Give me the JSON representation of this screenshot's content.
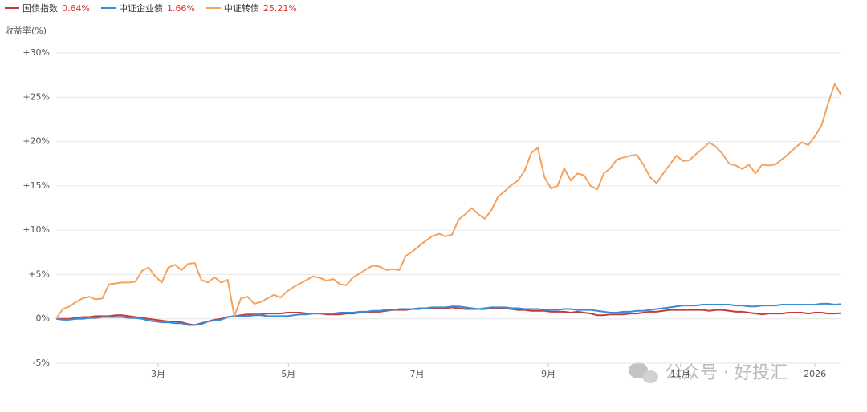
{
  "chart_data": {
    "type": "line",
    "y_axis_title": "收益率(%)",
    "watermark": "公众号 · 好投汇",
    "xlim": [
      0,
      119
    ],
    "xticks": [
      {
        "value": 15.45,
        "label": "3月"
      },
      {
        "value": 35.2,
        "label": "5月"
      },
      {
        "value": 54.7,
        "label": "7月"
      },
      {
        "value": 74.6,
        "label": "9月"
      },
      {
        "value": 94.6,
        "label": "11月"
      },
      {
        "value": 115,
        "label": "2026"
      }
    ],
    "ylim": [
      -5,
      30
    ],
    "yticks": [
      {
        "value": -5,
        "label": "-5%"
      },
      {
        "value": 0,
        "label": "0%"
      },
      {
        "value": 5,
        "label": "+5%"
      },
      {
        "value": 10,
        "label": "+10%"
      },
      {
        "value": 15,
        "label": "+15%"
      },
      {
        "value": 20,
        "label": "+20%"
      },
      {
        "value": 25,
        "label": "+25%"
      },
      {
        "value": 30,
        "label": "+30%"
      }
    ],
    "grid": true,
    "legend_value_color": "#e02f2f",
    "series": [
      {
        "name": "国债指数",
        "legend_value": "0.64%",
        "color": "#c8393a",
        "values": [
          0,
          0,
          0,
          0.1,
          0.2,
          0.2,
          0.3,
          0.3,
          0.3,
          0.4,
          0.4,
          0.3,
          0.2,
          0.1,
          0,
          -0.1,
          -0.2,
          -0.3,
          -0.3,
          -0.4,
          -0.6,
          -0.7,
          -0.5,
          -0.3,
          -0.1,
          0,
          0.2,
          0.3,
          0.4,
          0.5,
          0.5,
          0.5,
          0.6,
          0.6,
          0.6,
          0.7,
          0.7,
          0.7,
          0.6,
          0.6,
          0.6,
          0.5,
          0.5,
          0.5,
          0.6,
          0.6,
          0.7,
          0.7,
          0.8,
          0.8,
          0.9,
          1.0,
          1.0,
          1.0,
          1.1,
          1.1,
          1.2,
          1.2,
          1.2,
          1.2,
          1.3,
          1.2,
          1.1,
          1.1,
          1.1,
          1.1,
          1.2,
          1.2,
          1.2,
          1.1,
          1.0,
          1.0,
          0.9,
          0.9,
          0.9,
          0.8,
          0.8,
          0.8,
          0.7,
          0.8,
          0.7,
          0.6,
          0.4,
          0.4,
          0.5,
          0.5,
          0.5,
          0.6,
          0.6,
          0.7,
          0.8,
          0.8,
          0.9,
          1.0,
          1.0,
          1.0,
          1.0,
          1.0,
          1.0,
          0.9,
          1.0,
          1.0,
          0.9,
          0.8,
          0.8,
          0.7,
          0.6,
          0.5,
          0.6,
          0.6,
          0.6,
          0.7,
          0.7,
          0.7,
          0.6,
          0.7,
          0.7,
          0.6,
          0.6,
          0.64
        ]
      },
      {
        "name": "中证企业债",
        "legend_value": "1.66%",
        "color": "#3b8ad4",
        "values": [
          0,
          -0.1,
          -0.1,
          0,
          0,
          0.1,
          0.1,
          0.2,
          0.2,
          0.2,
          0.2,
          0.1,
          0.1,
          0,
          -0.2,
          -0.3,
          -0.4,
          -0.4,
          -0.5,
          -0.5,
          -0.7,
          -0.7,
          -0.6,
          -0.3,
          -0.2,
          -0.1,
          0.2,
          0.3,
          0.3,
          0.3,
          0.4,
          0.4,
          0.3,
          0.3,
          0.3,
          0.3,
          0.4,
          0.5,
          0.5,
          0.6,
          0.6,
          0.6,
          0.6,
          0.7,
          0.7,
          0.7,
          0.8,
          0.8,
          0.9,
          0.9,
          1.0,
          1.0,
          1.1,
          1.1,
          1.1,
          1.2,
          1.2,
          1.3,
          1.3,
          1.3,
          1.4,
          1.4,
          1.3,
          1.2,
          1.1,
          1.2,
          1.3,
          1.3,
          1.3,
          1.2,
          1.2,
          1.1,
          1.1,
          1.1,
          1.0,
          1.0,
          1.0,
          1.1,
          1.1,
          1.0,
          1.0,
          1.0,
          0.9,
          0.8,
          0.7,
          0.7,
          0.8,
          0.8,
          0.9,
          0.9,
          1.0,
          1.1,
          1.2,
          1.3,
          1.4,
          1.5,
          1.5,
          1.5,
          1.6,
          1.6,
          1.6,
          1.6,
          1.6,
          1.5,
          1.5,
          1.4,
          1.4,
          1.5,
          1.5,
          1.5,
          1.6,
          1.6,
          1.6,
          1.6,
          1.6,
          1.6,
          1.7,
          1.7,
          1.6,
          1.66
        ]
      },
      {
        "name": "中证转债",
        "legend_value": "25.21%",
        "color": "#f5a25d",
        "values": [
          0,
          1.1,
          1.4,
          1.9,
          2.3,
          2.5,
          2.2,
          2.3,
          3.9,
          4.0,
          4.1,
          4.1,
          4.2,
          5.4,
          5.8,
          4.8,
          4.1,
          5.8,
          6.1,
          5.5,
          6.2,
          6.3,
          4.4,
          4.1,
          4.7,
          4.1,
          4.4,
          0.3,
          2.3,
          2.5,
          1.7,
          1.9,
          2.3,
          2.7,
          2.4,
          3.1,
          3.6,
          4.0,
          4.4,
          4.8,
          4.6,
          4.3,
          4.5,
          3.9,
          3.8,
          4.7,
          5.1,
          5.6,
          6.0,
          5.9,
          5.5,
          5.6,
          5.5,
          7.1,
          7.6,
          8.2,
          8.8,
          9.3,
          9.6,
          9.3,
          9.5,
          11.2,
          11.8,
          12.5,
          11.8,
          11.3,
          12.3,
          13.8,
          14.4,
          15.1,
          15.6,
          16.7,
          18.7,
          19.3,
          16.0,
          14.7,
          15.0,
          17.0,
          15.6,
          16.4,
          16.2,
          15.0,
          14.6,
          16.4,
          17.0,
          18.0,
          18.2,
          18.4,
          18.5,
          17.4,
          16.0,
          15.3,
          16.4,
          17.4,
          18.4,
          17.8,
          17.9,
          18.6,
          19.2,
          19.9,
          19.4,
          18.6,
          17.5,
          17.3,
          16.9,
          17.4,
          16.4,
          17.4,
          17.3,
          17.4,
          18.0,
          18.6,
          19.3,
          19.9,
          19.6,
          20.6,
          21.8,
          24.3,
          26.5,
          25.21
        ]
      }
    ]
  }
}
